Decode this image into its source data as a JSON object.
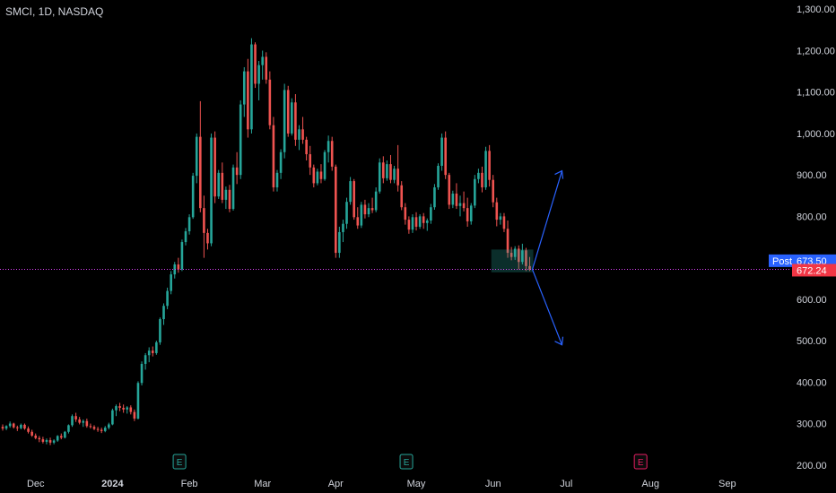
{
  "header": {
    "symbol": "SMCI, 1D, NASDAQ"
  },
  "colors": {
    "background": "#000000",
    "up": "#26a69a",
    "down": "#ef5350",
    "axis_text": "#d1d4dc",
    "price_line": "#e040fb",
    "post_label": "#2962ff",
    "last_label": "#f23645",
    "arrow": "#2962ff",
    "event_green": "#26a69a",
    "event_pink": "#e91e63"
  },
  "labels": {
    "post_tag": "Post",
    "post_price": "673.50",
    "last_price": "672.24"
  },
  "events": [
    {
      "text": "E",
      "month": "Feb",
      "kind": "green"
    },
    {
      "text": "E",
      "month": "May",
      "kind": "green"
    },
    {
      "text": "E",
      "month": "Aug",
      "kind": "pink"
    }
  ],
  "chart_data": {
    "type": "candlestick",
    "title": "SMCI, 1D, NASDAQ",
    "ylim": [
      180,
      1320
    ],
    "y_ticks": [
      "200.00",
      "300.00",
      "400.00",
      "500.00",
      "600.00",
      "700.00",
      "800.00",
      "900.00",
      "1,000.00",
      "1,100.00",
      "1,200.00",
      "1,300.00"
    ],
    "y_tick_values": [
      200,
      300,
      400,
      500,
      600,
      700,
      800,
      900,
      1000,
      1100,
      1200,
      1300
    ],
    "x_ticks": [
      "Dec",
      "2024",
      "Feb",
      "Mar",
      "Apr",
      "May",
      "Jun",
      "Jul",
      "Aug",
      "Sep"
    ],
    "x_tick_index": [
      9,
      30,
      51,
      71,
      91,
      113,
      134,
      154,
      177,
      198
    ],
    "last_price": 672.24,
    "post_price": 673.5,
    "projection": {
      "from": 672,
      "up_target": 910,
      "down_target": 490
    },
    "candles": [
      [
        292,
        298,
        283,
        288
      ],
      [
        288,
        296,
        284,
        294
      ],
      [
        294,
        305,
        290,
        300
      ],
      [
        300,
        302,
        288,
        291
      ],
      [
        291,
        295,
        282,
        289
      ],
      [
        289,
        300,
        286,
        297
      ],
      [
        297,
        300,
        285,
        288
      ],
      [
        288,
        293,
        276,
        280
      ],
      [
        280,
        285,
        268,
        271
      ],
      [
        271,
        276,
        262,
        265
      ],
      [
        265,
        270,
        255,
        262
      ],
      [
        262,
        268,
        252,
        256
      ],
      [
        256,
        264,
        250,
        260
      ],
      [
        260,
        266,
        248,
        254
      ],
      [
        254,
        262,
        250,
        259
      ],
      [
        259,
        272,
        256,
        270
      ],
      [
        270,
        276,
        262,
        266
      ],
      [
        266,
        282,
        264,
        280
      ],
      [
        280,
        298,
        276,
        296
      ],
      [
        296,
        322,
        292,
        318
      ],
      [
        318,
        326,
        304,
        310
      ],
      [
        310,
        316,
        298,
        302
      ],
      [
        302,
        310,
        292,
        306
      ],
      [
        306,
        312,
        290,
        294
      ],
      [
        294,
        300,
        288,
        292
      ],
      [
        292,
        296,
        284,
        287
      ],
      [
        287,
        292,
        280,
        285
      ],
      [
        285,
        290,
        277,
        282
      ],
      [
        282,
        294,
        279,
        290
      ],
      [
        290,
        302,
        286,
        298
      ],
      [
        298,
        336,
        296,
        332
      ],
      [
        332,
        346,
        318,
        342
      ],
      [
        342,
        350,
        330,
        338
      ],
      [
        338,
        346,
        326,
        334
      ],
      [
        334,
        342,
        324,
        339
      ],
      [
        339,
        344,
        322,
        328
      ],
      [
        328,
        334,
        306,
        312
      ],
      [
        312,
        402,
        310,
        398
      ],
      [
        398,
        450,
        392,
        444
      ],
      [
        444,
        470,
        430,
        465
      ],
      [
        465,
        484,
        448,
        476
      ],
      [
        476,
        486,
        462,
        470
      ],
      [
        470,
        500,
        466,
        496
      ],
      [
        496,
        556,
        490,
        552
      ],
      [
        552,
        590,
        538,
        584
      ],
      [
        584,
        628,
        576,
        620
      ],
      [
        620,
        668,
        612,
        660
      ],
      [
        660,
        690,
        650,
        684
      ],
      [
        684,
        700,
        664,
        672
      ],
      [
        672,
        744,
        668,
        738
      ],
      [
        738,
        772,
        730,
        764
      ],
      [
        764,
        805,
        756,
        798
      ],
      [
        798,
        905,
        794,
        898
      ],
      [
        898,
        1000,
        880,
        992
      ],
      [
        992,
        1078,
        810,
        820
      ],
      [
        820,
        850,
        700,
        760
      ],
      [
        760,
        770,
        720,
        735
      ],
      [
        735,
        1000,
        728,
        990
      ],
      [
        990,
        1005,
        832,
        848
      ],
      [
        848,
        912,
        842,
        905
      ],
      [
        905,
        930,
        832,
        840
      ],
      [
        840,
        872,
        818,
        864
      ],
      [
        864,
        876,
        810,
        818
      ],
      [
        818,
        925,
        814,
        918
      ],
      [
        918,
        955,
        878,
        900
      ],
      [
        900,
        1080,
        890,
        1070
      ],
      [
        1070,
        1160,
        1040,
        1150
      ],
      [
        1150,
        1180,
        990,
        1010
      ],
      [
        1010,
        1230,
        1000,
        1215
      ],
      [
        1215,
        1220,
        1110,
        1120
      ],
      [
        1120,
        1175,
        1080,
        1165
      ],
      [
        1165,
        1200,
        1130,
        1185
      ],
      [
        1185,
        1196,
        1120,
        1130
      ],
      [
        1130,
        1150,
        1010,
        1020
      ],
      [
        1020,
        1040,
        860,
        870
      ],
      [
        870,
        912,
        860,
        905
      ],
      [
        905,
        962,
        890,
        955
      ],
      [
        955,
        1120,
        940,
        1105
      ],
      [
        1105,
        1115,
        992,
        1000
      ],
      [
        1000,
        1085,
        995,
        1075
      ],
      [
        1075,
        1095,
        970,
        985
      ],
      [
        985,
        1020,
        960,
        1010
      ],
      [
        1010,
        1040,
        975,
        985
      ],
      [
        985,
        992,
        935,
        950
      ],
      [
        950,
        970,
        900,
        918
      ],
      [
        918,
        925,
        870,
        880
      ],
      [
        880,
        915,
        875,
        908
      ],
      [
        908,
        926,
        880,
        890
      ],
      [
        890,
        960,
        886,
        955
      ],
      [
        955,
        995,
        930,
        982
      ],
      [
        982,
        992,
        910,
        920
      ],
      [
        920,
        925,
        700,
        712
      ],
      [
        712,
        775,
        700,
        762
      ],
      [
        762,
        792,
        738,
        782
      ],
      [
        782,
        845,
        770,
        835
      ],
      [
        835,
        895,
        828,
        885
      ],
      [
        885,
        890,
        792,
        798
      ],
      [
        798,
        822,
        770,
        778
      ],
      [
        778,
        835,
        772,
        828
      ],
      [
        828,
        840,
        795,
        805
      ],
      [
        805,
        832,
        798,
        820
      ],
      [
        820,
        845,
        808,
        815
      ],
      [
        815,
        870,
        810,
        860
      ],
      [
        860,
        940,
        855,
        930
      ],
      [
        930,
        945,
        880,
        892
      ],
      [
        892,
        935,
        886,
        926
      ],
      [
        926,
        948,
        880,
        888
      ],
      [
        888,
        922,
        880,
        915
      ],
      [
        915,
        972,
        860,
        875
      ],
      [
        875,
        885,
        815,
        822
      ],
      [
        822,
        832,
        780,
        792
      ],
      [
        792,
        800,
        758,
        768
      ],
      [
        768,
        805,
        760,
        798
      ],
      [
        798,
        810,
        766,
        775
      ],
      [
        775,
        805,
        770,
        800
      ],
      [
        800,
        808,
        770,
        784
      ],
      [
        784,
        795,
        765,
        790
      ],
      [
        790,
        830,
        782,
        822
      ],
      [
        822,
        878,
        816,
        870
      ],
      [
        870,
        928,
        864,
        922
      ],
      [
        922,
        1000,
        910,
        990
      ],
      [
        990,
        1005,
        890,
        900
      ],
      [
        900,
        905,
        818,
        828
      ],
      [
        828,
        862,
        820,
        855
      ],
      [
        855,
        880,
        818,
        825
      ],
      [
        825,
        850,
        800,
        832
      ],
      [
        832,
        860,
        812,
        820
      ],
      [
        820,
        845,
        775,
        788
      ],
      [
        788,
        832,
        780,
        826
      ],
      [
        826,
        900,
        820,
        890
      ],
      [
        890,
        915,
        880,
        905
      ],
      [
        905,
        920,
        858,
        870
      ],
      [
        870,
        968,
        864,
        958
      ],
      [
        958,
        972,
        872,
        888
      ],
      [
        888,
        900,
        822,
        834
      ],
      [
        834,
        845,
        776,
        792
      ],
      [
        792,
        808,
        780,
        800
      ],
      [
        800,
        808,
        762,
        770
      ],
      [
        770,
        790,
        700,
        712
      ],
      [
        712,
        726,
        694,
        702
      ],
      [
        702,
        728,
        695,
        722
      ],
      [
        722,
        730,
        672,
        690
      ],
      [
        690,
        734,
        684,
        718
      ],
      [
        718,
        724,
        668,
        680
      ],
      [
        680,
        702,
        668,
        672
      ]
    ]
  }
}
